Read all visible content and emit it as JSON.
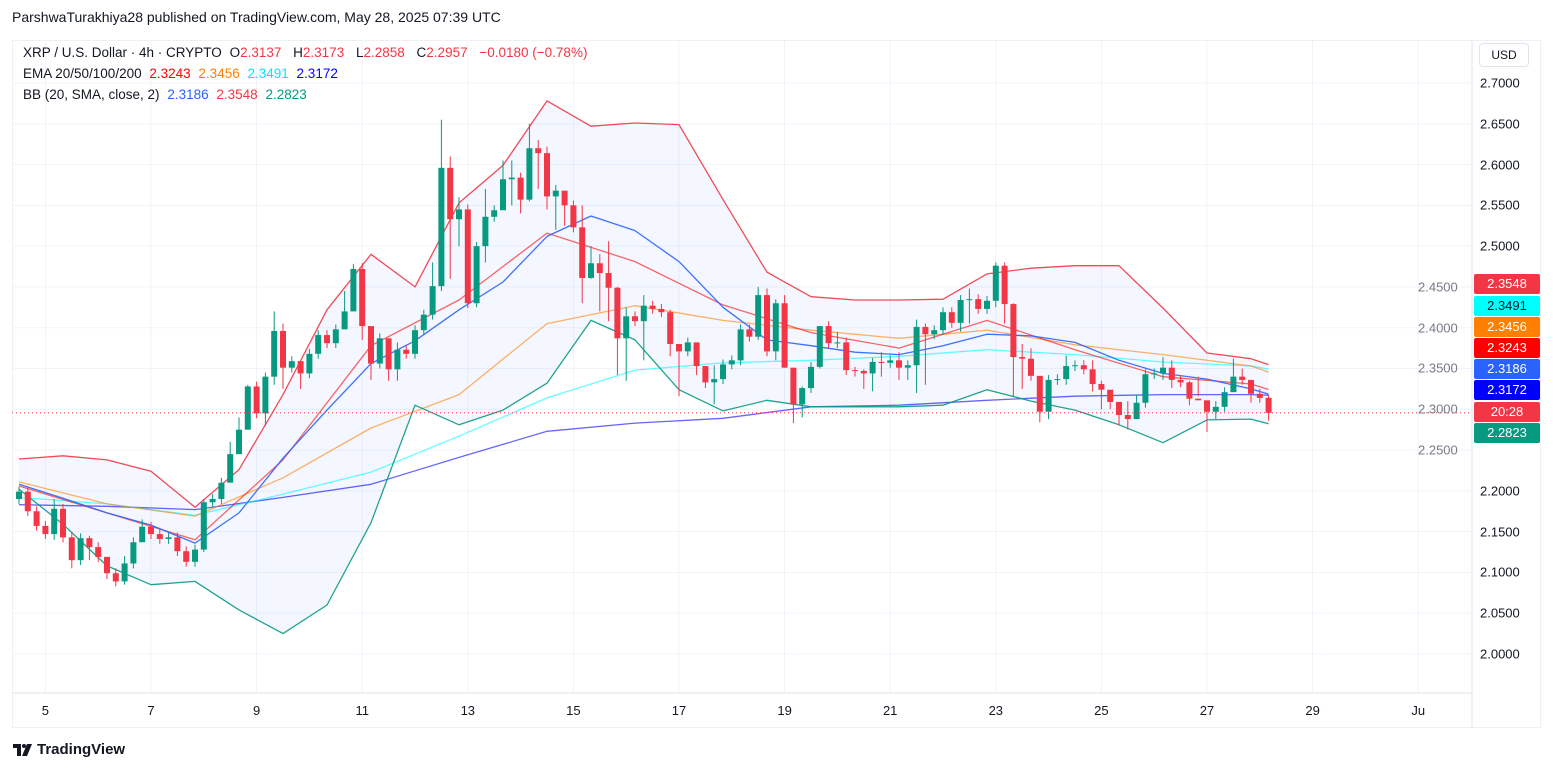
{
  "publisher_line": "ParshwaTurakhiya28 published on TradingView.com, May 28, 2025 07:39 UTC",
  "legend": {
    "symbol": "XRP / U.S. Dollar · 4h · CRYPTO",
    "o_label": "O",
    "o": "2.3137",
    "h_label": "H",
    "h": "2.3173",
    "l_label": "L",
    "l": "2.2858",
    "c_label": "C",
    "c": "2.2957",
    "change": "−0.0180 (−0.78%)",
    "ema_label": "EMA 20/50/100/200",
    "ema_values": [
      "2.3243",
      "2.3456",
      "2.3491",
      "2.3172"
    ],
    "bb_label": "BB (20, SMA, close, 2)",
    "bb_values": [
      "2.3186",
      "2.3548",
      "2.2823"
    ]
  },
  "currency": "USD",
  "price_ticks": [
    "2.7000",
    "2.6500",
    "2.6000",
    "2.5500",
    "2.5000",
    "2.4500",
    "2.4000",
    "2.3500",
    "2.3000",
    "2.2500",
    "2.2000",
    "2.1500",
    "2.1000",
    "2.0500",
    "2.0000"
  ],
  "price_labels": [
    {
      "text": "2.3548",
      "color": "#f23645",
      "text_color": "#ffffff"
    },
    {
      "text": "2.3491",
      "color": "#00ffff",
      "text_color": "#131722"
    },
    {
      "text": "2.3456",
      "color": "#ff8000",
      "text_color": "#ffffff"
    },
    {
      "text": "2.3243",
      "color": "#ff0000",
      "text_color": "#ffffff"
    },
    {
      "text": "2.3186",
      "color": "#2962ff",
      "text_color": "#ffffff"
    },
    {
      "text": "2.3172",
      "color": "#0000ff",
      "text_color": "#ffffff"
    },
    {
      "text": "20:28",
      "color": "#f23645",
      "text_color": "#ffffff"
    },
    {
      "text": "2.2823",
      "color": "#089981",
      "text_color": "#ffffff"
    }
  ],
  "date_labels": [
    "5",
    "7",
    "9",
    "11",
    "13",
    "15",
    "17",
    "19",
    "21",
    "23",
    "25",
    "27",
    "29",
    "Ju"
  ],
  "branding": "TradingView",
  "colors": {
    "up": "#089981",
    "down": "#f23645",
    "bb_upper": "#f23645",
    "bb_lower": "#089981",
    "bb_basis": "#2962ff",
    "ema20": "#ff0000",
    "ema50": "#ff8000",
    "ema100": "#00ffff",
    "ema200": "#0000ff"
  },
  "chart_data": {
    "type": "candlestick",
    "title": "XRP / U.S. Dollar · 4h · CRYPTO",
    "interval": "4h",
    "ylim": [
      1.95,
      2.73
    ],
    "x_start": "May 4 12:00",
    "first_open": 2.19,
    "close": [
      2.199,
      2.175,
      2.157,
      2.147,
      2.178,
      2.143,
      2.115,
      2.142,
      2.131,
      2.119,
      2.099,
      2.089,
      2.111,
      2.137,
      2.156,
      2.147,
      2.141,
      2.143,
      2.126,
      2.113,
      2.128,
      2.186,
      2.19,
      2.21,
      2.245,
      2.275,
      2.328,
      2.295,
      2.34,
      2.396,
      2.351,
      2.359,
      2.344,
      2.368,
      2.391,
      2.381,
      2.398,
      2.42,
      2.472,
      2.402,
      2.356,
      2.387,
      2.349,
      2.373,
      2.368,
      2.397,
      2.416,
      2.451,
      2.596,
      2.533,
      2.545,
      2.43,
      2.5,
      2.536,
      2.544,
      2.582,
      2.584,
      2.557,
      2.62,
      2.614,
      2.561,
      2.568,
      2.55,
      2.523,
      2.461,
      2.479,
      2.467,
      2.449,
      2.387,
      2.414,
      2.408,
      2.427,
      2.423,
      2.419,
      2.38,
      2.371,
      2.382,
      2.353,
      2.333,
      2.337,
      2.355,
      2.36,
      2.398,
      2.389,
      2.44,
      2.371,
      2.43,
      2.351,
      2.306,
      2.326,
      2.352,
      2.402,
      2.381,
      2.382,
      2.348,
      2.347,
      2.344,
      2.358,
      2.357,
      2.36,
      2.351,
      2.354,
      2.401,
      2.392,
      2.397,
      2.419,
      2.406,
      2.434,
      2.435,
      2.423,
      2.433,
      2.476,
      2.429,
      2.364,
      2.362,
      2.341,
      2.297,
      2.336,
      2.337,
      2.353,
      2.354,
      2.349,
      2.331,
      2.324,
      2.309,
      2.293,
      2.288,
      2.308,
      2.343,
      2.344,
      2.351,
      2.336,
      2.333,
      2.313,
      2.311,
      2.297,
      2.303,
      2.321,
      2.34,
      2.336,
      2.319,
      2.314,
      2.2957
    ],
    "default_wick": 0.006,
    "high_low": {
      "4": [
        2.19,
        2.14
      ],
      "6": [
        2.15,
        2.105
      ],
      "8": [
        2.145,
        2.115
      ],
      "10": [
        2.115,
        2.092
      ],
      "12": [
        2.12,
        2.085
      ],
      "14": [
        2.165,
        2.14
      ],
      "21": [
        2.19,
        2.125
      ],
      "24": [
        2.26,
        2.238
      ],
      "25": [
        2.29,
        2.265
      ],
      "26": [
        2.33,
        2.29
      ],
      "28": [
        2.345,
        2.28
      ],
      "29": [
        2.42,
        2.33
      ],
      "30": [
        2.405,
        2.325
      ],
      "32": [
        2.352,
        2.325
      ],
      "37": [
        2.445,
        2.405
      ],
      "38": [
        2.478,
        2.44
      ],
      "39": [
        2.479,
        2.385
      ],
      "40": [
        2.366,
        2.336
      ],
      "42": [
        2.352,
        2.335
      ],
      "43": [
        2.382,
        2.335
      ],
      "47": [
        2.48,
        2.41
      ],
      "48": [
        2.655,
        2.445
      ],
      "49": [
        2.61,
        2.46
      ],
      "50": [
        2.56,
        2.5
      ],
      "52": [
        2.505,
        2.425
      ],
      "53": [
        2.57,
        2.48
      ],
      "55": [
        2.605,
        2.56
      ],
      "56": [
        2.605,
        2.55
      ],
      "57": [
        2.59,
        2.54
      ],
      "58": [
        2.65,
        2.555
      ],
      "59": [
        2.63,
        2.57
      ],
      "60": [
        2.622,
        2.545
      ],
      "61": [
        2.575,
        2.52
      ],
      "62": [
        2.555,
        2.525
      ],
      "64": [
        2.55,
        2.43
      ],
      "65": [
        2.5,
        2.46
      ],
      "66": [
        2.49,
        2.42
      ],
      "67": [
        2.506,
        2.408
      ],
      "68": [
        2.45,
        2.342
      ],
      "69": [
        2.425,
        2.335
      ],
      "71": [
        2.44,
        2.36
      ],
      "74": [
        2.422,
        2.365
      ],
      "75": [
        2.375,
        2.316
      ],
      "77": [
        2.36,
        2.342
      ],
      "78": [
        2.338,
        2.326
      ],
      "79": [
        2.354,
        2.306
      ],
      "84": [
        2.45,
        2.385
      ],
      "85": [
        2.448,
        2.365
      ],
      "86": [
        2.435,
        2.36
      ],
      "87": [
        2.44,
        2.351
      ],
      "88": [
        2.318,
        2.283
      ],
      "89": [
        2.328,
        2.29
      ],
      "91": [
        2.402,
        2.35
      ],
      "93": [
        2.395,
        2.375
      ],
      "95": [
        2.352,
        2.34
      ],
      "96": [
        2.349,
        2.325
      ],
      "97": [
        2.363,
        2.322
      ],
      "98": [
        2.37,
        2.34
      ],
      "100": [
        2.37,
        2.336
      ],
      "101": [
        2.36,
        2.336
      ],
      "102": [
        2.41,
        2.32
      ],
      "103": [
        2.405,
        2.33
      ],
      "107": [
        2.44,
        2.395
      ],
      "108": [
        2.448,
        2.405
      ],
      "111": [
        2.48,
        2.425
      ],
      "112": [
        2.48,
        2.405
      ],
      "113": [
        2.43,
        2.316
      ],
      "114": [
        2.38,
        2.325
      ],
      "115": [
        2.375,
        2.335
      ],
      "116": [
        2.3,
        2.284
      ],
      "117": [
        2.342,
        2.288
      ],
      "119": [
        2.366,
        2.33
      ],
      "122": [
        2.36,
        2.322
      ],
      "123": [
        2.335,
        2.3
      ],
      "124": [
        2.318,
        2.3
      ],
      "125": [
        2.3,
        2.28
      ],
      "126": [
        2.31,
        2.275
      ],
      "127": [
        2.318,
        2.29
      ],
      "130": [
        2.364,
        2.336
      ],
      "131": [
        2.36,
        2.326
      ],
      "133": [
        2.335,
        2.305
      ],
      "134": [
        2.34,
        2.316
      ],
      "135": [
        2.308,
        2.272
      ],
      "136": [
        2.31,
        2.288
      ],
      "138": [
        2.362,
        2.336
      ],
      "139": [
        2.35,
        2.33
      ],
      "140": [
        2.33,
        2.308
      ],
      "142": [
        2.3173,
        2.2858
      ]
    },
    "last_price": 2.2957,
    "bb_sample_index": [
      0,
      5,
      10,
      15,
      20,
      25,
      30,
      35,
      40,
      45,
      50,
      55,
      60,
      65,
      70,
      75,
      80,
      85,
      90,
      95,
      100,
      105,
      110,
      115,
      120,
      125,
      130,
      135,
      140,
      142
    ],
    "bb_upper": [
      2.239,
      2.243,
      2.238,
      2.224,
      2.18,
      2.226,
      2.318,
      2.422,
      2.49,
      2.45,
      2.553,
      2.599,
      2.678,
      2.647,
      2.651,
      2.649,
      2.557,
      2.468,
      2.438,
      2.434,
      2.434,
      2.435,
      2.466,
      2.473,
      2.476,
      2.476,
      2.424,
      2.369,
      2.362,
      2.3548
    ],
    "bb_basis": [
      2.208,
      2.191,
      2.173,
      2.158,
      2.136,
      2.173,
      2.24,
      2.299,
      2.356,
      2.384,
      2.422,
      2.456,
      2.512,
      2.537,
      2.519,
      2.481,
      2.425,
      2.385,
      2.378,
      2.37,
      2.367,
      2.378,
      2.392,
      2.39,
      2.382,
      2.36,
      2.344,
      2.337,
      2.325,
      2.3186
    ],
    "bb_lower": [
      2.202,
      2.159,
      2.108,
      2.085,
      2.089,
      2.054,
      2.025,
      2.06,
      2.161,
      2.305,
      2.281,
      2.299,
      2.332,
      2.409,
      2.385,
      2.324,
      2.298,
      2.311,
      2.303,
      2.303,
      2.303,
      2.305,
      2.324,
      2.31,
      2.299,
      2.281,
      2.259,
      2.287,
      2.288,
      2.2823
    ],
    "ema_sample_index": [
      0,
      10,
      20,
      30,
      40,
      50,
      60,
      70,
      80,
      90,
      100,
      110,
      120,
      130,
      140,
      142
    ],
    "ema20": [
      2.206,
      2.173,
      2.14,
      2.238,
      2.378,
      2.434,
      2.516,
      2.481,
      2.428,
      2.394,
      2.375,
      2.409,
      2.373,
      2.34,
      2.331,
      2.3243
    ],
    "ema50": [
      2.211,
      2.184,
      2.169,
      2.216,
      2.277,
      2.318,
      2.405,
      2.427,
      2.409,
      2.397,
      2.387,
      2.397,
      2.379,
      2.367,
      2.353,
      2.3456
    ],
    "ema100": [
      2.192,
      2.184,
      2.17,
      2.196,
      2.223,
      2.267,
      2.314,
      2.348,
      2.357,
      2.36,
      2.365,
      2.373,
      2.367,
      2.358,
      2.353,
      2.3491
    ],
    "ema200": [
      2.183,
      2.181,
      2.177,
      2.192,
      2.208,
      2.241,
      2.273,
      2.283,
      2.289,
      2.303,
      2.305,
      2.311,
      2.316,
      2.318,
      2.318,
      2.3172
    ]
  }
}
